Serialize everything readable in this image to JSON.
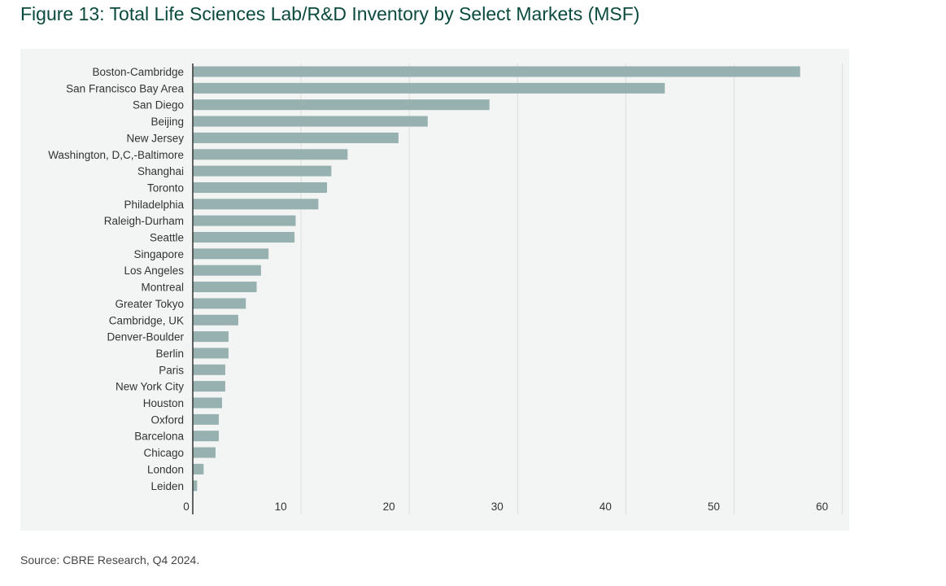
{
  "title": "Figure 13: Total Life Sciences Lab/R&D Inventory by Select Markets (MSF)",
  "source": "Source: CBRE Research, Q4 2024.",
  "chart_data": {
    "type": "bar",
    "orientation": "horizontal",
    "categories": [
      "Boston-Cambridge",
      "San Francisco Bay Area",
      "San Diego",
      "Beijing",
      "New Jersey",
      "Washington, D,C,-Baltimore",
      "Shanghai",
      "Toronto",
      "Philadelphia",
      "Raleigh-Durham",
      "Seattle",
      "Singapore",
      "Los Angeles",
      "Montreal",
      "Greater Tokyo",
      "Cambridge, UK",
      "Denver-Boulder",
      "Berlin",
      "Paris",
      "New York City",
      "Houston",
      "Oxford",
      "Barcelona",
      "Chicago",
      "London",
      "Leiden"
    ],
    "values": [
      56.1,
      43.6,
      27.4,
      21.7,
      19.0,
      14.3,
      12.8,
      12.4,
      11.6,
      9.5,
      9.4,
      7.0,
      6.3,
      5.9,
      4.9,
      4.2,
      3.3,
      3.3,
      3.0,
      3.0,
      2.7,
      2.4,
      2.4,
      2.1,
      1.0,
      0.4
    ],
    "xlim": [
      0,
      60
    ],
    "xticks": [
      "0",
      "10",
      "20",
      "30",
      "40",
      "50",
      "60"
    ],
    "grid": true,
    "bar_color": "#97b0b0",
    "axis_color": "#333333",
    "grid_color": "#d9dede",
    "title_color": "#0b4a3e"
  }
}
